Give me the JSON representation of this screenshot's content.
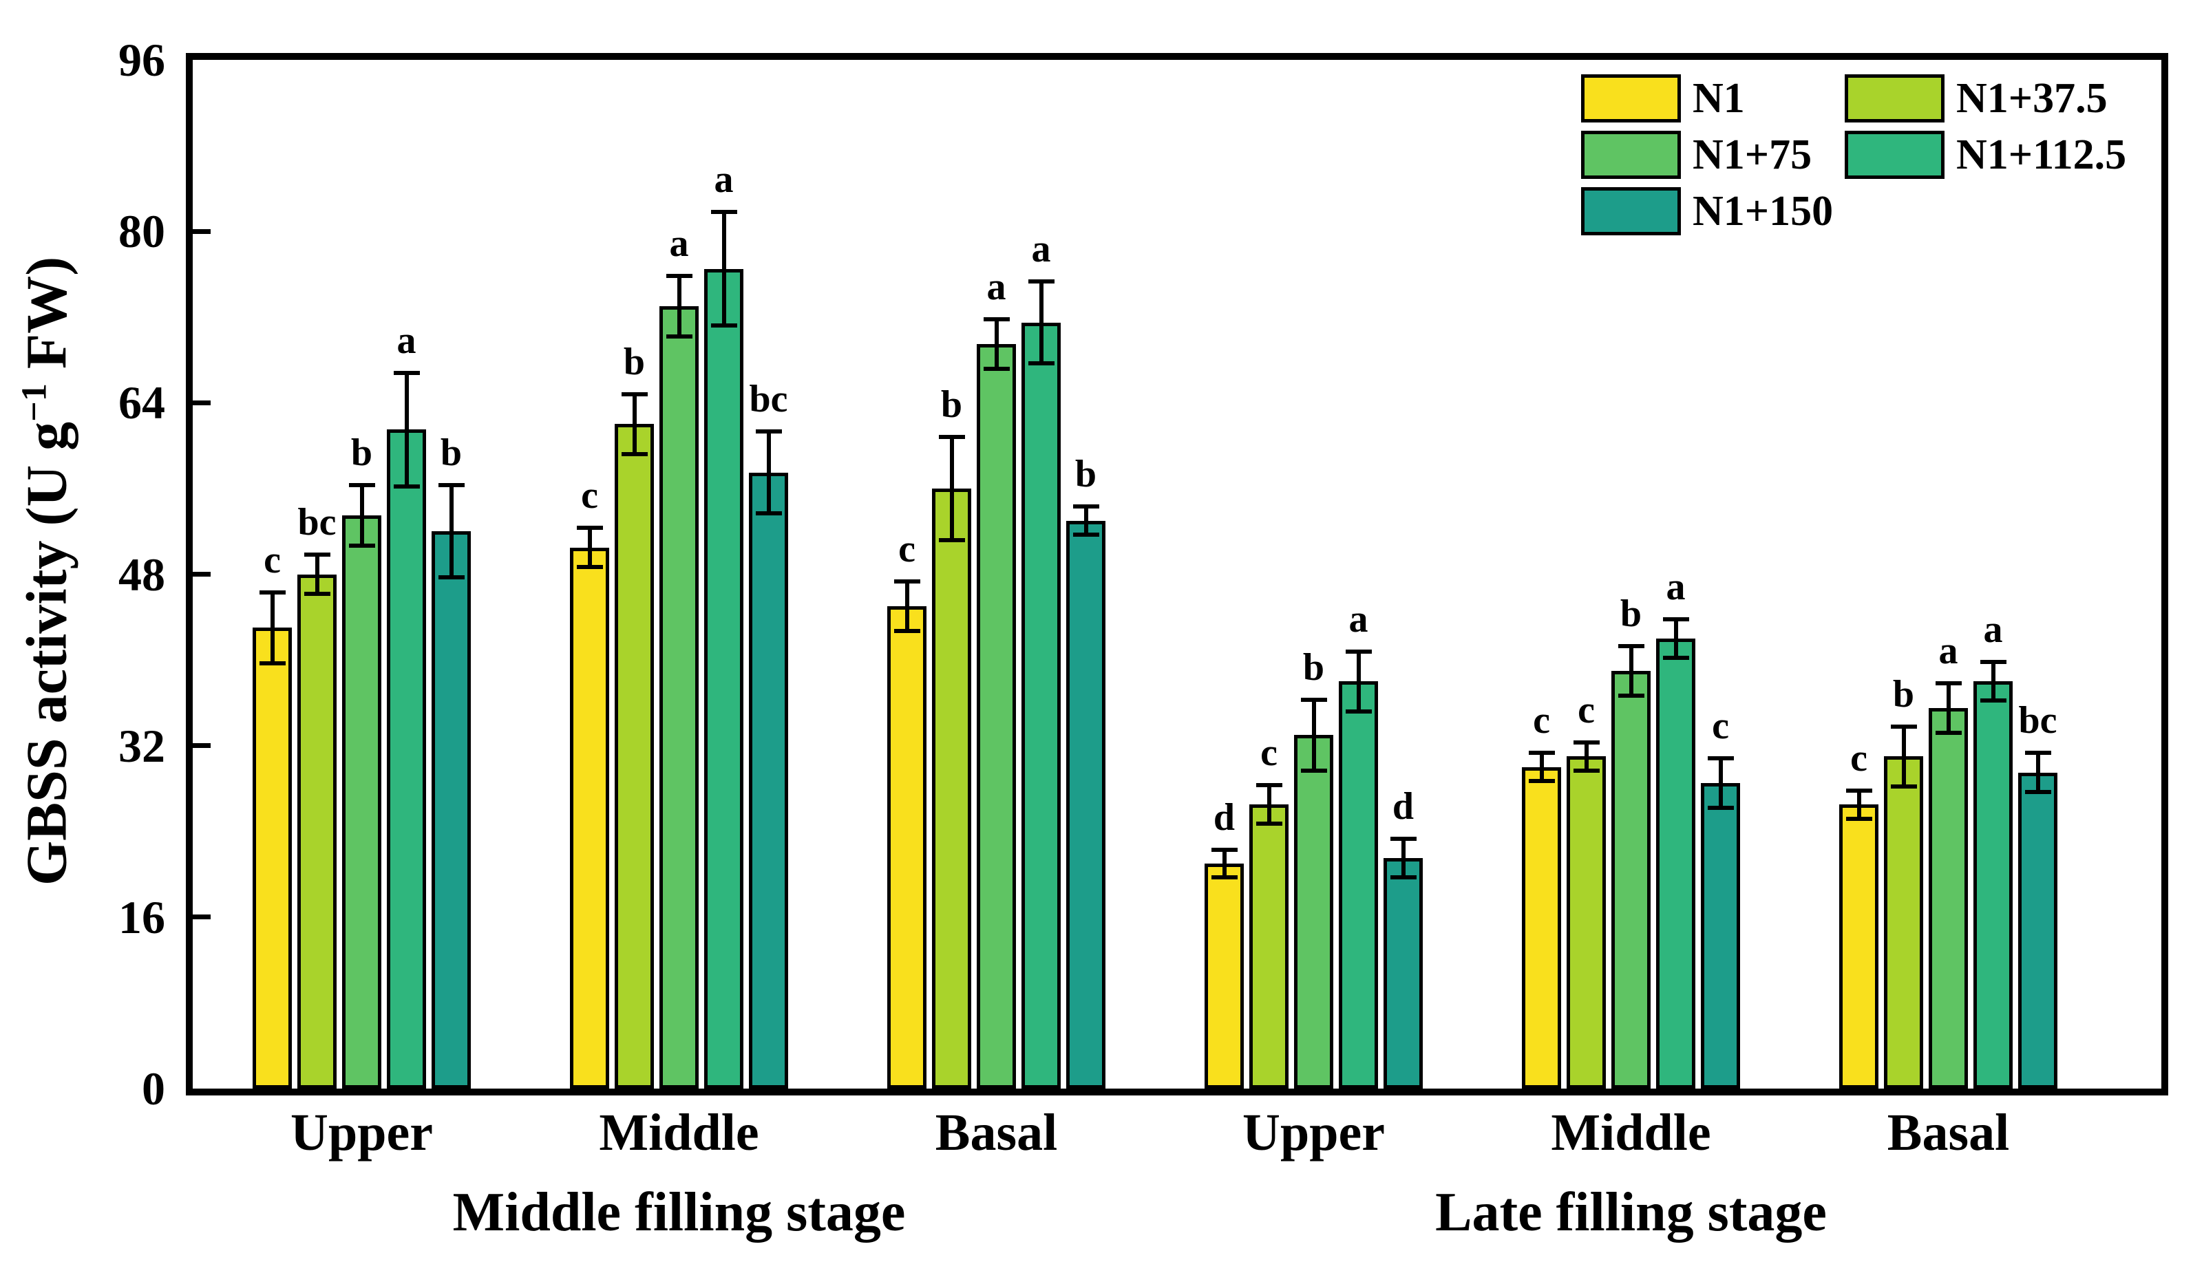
{
  "accent_colors": {
    "frame": "#000000",
    "background": "#ffffff"
  },
  "chart_data": {
    "type": "bar",
    "title": "",
    "ylabel_parts": {
      "prefix": "GBSS activity (U g",
      "superscript": "−1",
      "suffix": " FW)"
    },
    "xlabel": "",
    "ylim": [
      0,
      96
    ],
    "yticks": [
      0,
      16,
      32,
      48,
      64,
      80,
      96
    ],
    "grid": false,
    "legend_position": "top-right-inside",
    "series": [
      {
        "name": "N1",
        "color": "#F9E01D"
      },
      {
        "name": "N1+37.5",
        "color": "#A9D32B"
      },
      {
        "name": "N1+75",
        "color": "#5FC463"
      },
      {
        "name": "N1+112.5",
        "color": "#2FB67D"
      },
      {
        "name": "N1+150",
        "color": "#1D9D8A"
      }
    ],
    "stage_labels": [
      "Middle filling stage",
      "Late filling stage"
    ],
    "groups": [
      {
        "stage": "Middle filling stage",
        "position": "Upper",
        "values": [
          43.0,
          48.0,
          53.5,
          61.5,
          52.0
        ],
        "errors": [
          3.5,
          2.0,
          3.0,
          5.5,
          4.5
        ],
        "letters": [
          "c",
          "bc",
          "b",
          "a",
          "b"
        ]
      },
      {
        "stage": "Middle filling stage",
        "position": "Middle",
        "values": [
          50.5,
          62.0,
          73.0,
          76.5,
          57.5
        ],
        "errors": [
          2.0,
          3.0,
          3.0,
          5.5,
          4.0
        ],
        "letters": [
          "c",
          "b",
          "a",
          "a",
          "bc"
        ]
      },
      {
        "stage": "Middle filling stage",
        "position": "Basal",
        "values": [
          45.0,
          56.0,
          69.5,
          71.5,
          53.0
        ],
        "errors": [
          2.5,
          5.0,
          2.5,
          4.0,
          1.5
        ],
        "letters": [
          "c",
          "b",
          "a",
          "a",
          "b"
        ]
      },
      {
        "stage": "Late filling stage",
        "position": "Upper",
        "values": [
          21.0,
          26.5,
          33.0,
          38.0,
          21.5
        ],
        "errors": [
          1.5,
          2.0,
          3.5,
          3.0,
          2.0
        ],
        "letters": [
          "d",
          "c",
          "b",
          "a",
          "d"
        ]
      },
      {
        "stage": "Late filling stage",
        "position": "Middle",
        "values": [
          30.0,
          31.0,
          39.0,
          42.0,
          28.5
        ],
        "errors": [
          1.5,
          1.5,
          2.5,
          2.0,
          2.5
        ],
        "letters": [
          "c",
          "c",
          "b",
          "a",
          "c"
        ]
      },
      {
        "stage": "Late filling stage",
        "position": "Basal",
        "values": [
          26.5,
          31.0,
          35.5,
          38.0,
          29.5
        ],
        "errors": [
          1.5,
          3.0,
          2.5,
          2.0,
          2.0
        ],
        "letters": [
          "c",
          "b",
          "a",
          "a",
          "bc"
        ]
      }
    ]
  }
}
